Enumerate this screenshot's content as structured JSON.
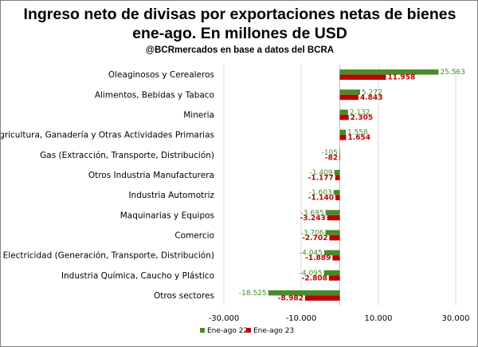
{
  "colors": {
    "series1": "#4a8a2a",
    "series2": "#c00000",
    "grid": "#d9d9d9",
    "zero": "#bfbfbf"
  },
  "chart_data": {
    "type": "bar",
    "orientation": "horizontal",
    "title_line1": "Ingreso neto de divisas por exportaciones netas de bienes",
    "title_line2": "ene-ago. En millones de USD",
    "subtitle": "@BCRmercados en base a datos del BCRA",
    "categories": [
      "Oleaginosos y Cerealeros",
      "Alimentos, Bebidas y Tabaco",
      "Mineria",
      "Agricultura, Ganadería y Otras Actividades Primarias",
      "Gas (Extracción, Transporte, Distribución)",
      "Otros Industria Manufacturera",
      "Industria Automotriz",
      "Maquinarias y Equipos",
      "Comercio",
      "Electricidad (Generación, Transporte, Distribución)",
      "Industria Química, Caucho y Plástico",
      "Otros sectores"
    ],
    "series": [
      {
        "name": "Ene-ago 22",
        "values": [
          25563,
          5272,
          2132,
          1558,
          -105,
          -1409,
          -1603,
          -3695,
          -3706,
          -4045,
          -4095,
          -18525
        ],
        "labels": [
          "25.563",
          "5.272",
          "2.132",
          "1.558",
          "-105",
          "-1.409",
          "-1.603",
          "-3.695",
          "-3.706",
          "-4.045",
          "-4.095",
          "-18.525"
        ]
      },
      {
        "name": "Ene-ago 23",
        "values": [
          11958,
          4843,
          2305,
          1654,
          -82,
          -1177,
          -1140,
          -3243,
          -2702,
          -1889,
          -2808,
          -8982
        ],
        "labels": [
          "11.958",
          "4.843",
          "2.305",
          "1.654",
          "-82",
          "-1.177",
          "-1.140",
          "-3.243",
          "-2.702",
          "-1.889",
          "-2.808",
          "-8.982"
        ]
      }
    ],
    "xlim": [
      -30000,
      30000
    ],
    "xticks": [
      -30000,
      -10000,
      10000,
      30000
    ],
    "xtick_labels": [
      "-30.000",
      "-10.000",
      "10.000",
      "30.000"
    ],
    "grid": true,
    "legend_position": "bottom"
  }
}
